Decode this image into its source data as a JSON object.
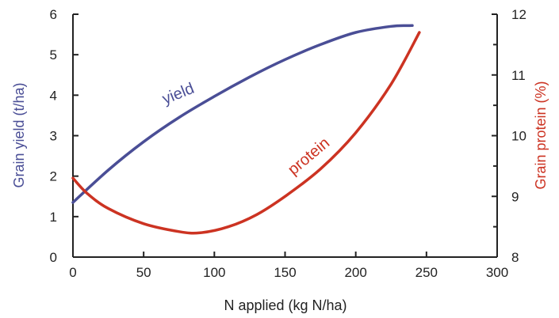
{
  "chart_data": {
    "type": "line",
    "xlabel": "N applied (kg N/ha)",
    "ylabel_left": "Grain yield (t/ha)",
    "ylabel_right": "Grain protein (%)",
    "xlim": [
      0,
      300
    ],
    "ylim_left": [
      0,
      6
    ],
    "ylim_right": [
      8,
      12
    ],
    "xticks": [
      0,
      50,
      100,
      150,
      200,
      250,
      300
    ],
    "yticks_left": [
      0,
      1,
      2,
      3,
      4,
      5,
      6
    ],
    "yticks_right": [
      8,
      9,
      10,
      11,
      12
    ],
    "grid": false,
    "legend": "none (series labelled inline)",
    "series": [
      {
        "name": "yield",
        "axis": "left",
        "color": "#4a4e96",
        "x": [
          0,
          25,
          50,
          75,
          100,
          125,
          150,
          175,
          200,
          225,
          240
        ],
        "y": [
          1.35,
          2.15,
          2.85,
          3.45,
          3.97,
          4.45,
          4.88,
          5.25,
          5.55,
          5.7,
          5.72
        ]
      },
      {
        "name": "protein",
        "axis": "right",
        "color": "#cc3322",
        "x": [
          0,
          10,
          25,
          50,
          75,
          90,
          110,
          130,
          150,
          175,
          200,
          225,
          245
        ],
        "y": [
          9.3,
          9.05,
          8.8,
          8.55,
          8.42,
          8.4,
          8.5,
          8.7,
          9.0,
          9.45,
          10.05,
          10.85,
          11.7
        ]
      }
    ],
    "annotations": [
      {
        "text": "yield",
        "series": "yield",
        "color": "#4a4e96"
      },
      {
        "text": "protein",
        "series": "protein",
        "color": "#cc3322"
      }
    ]
  }
}
